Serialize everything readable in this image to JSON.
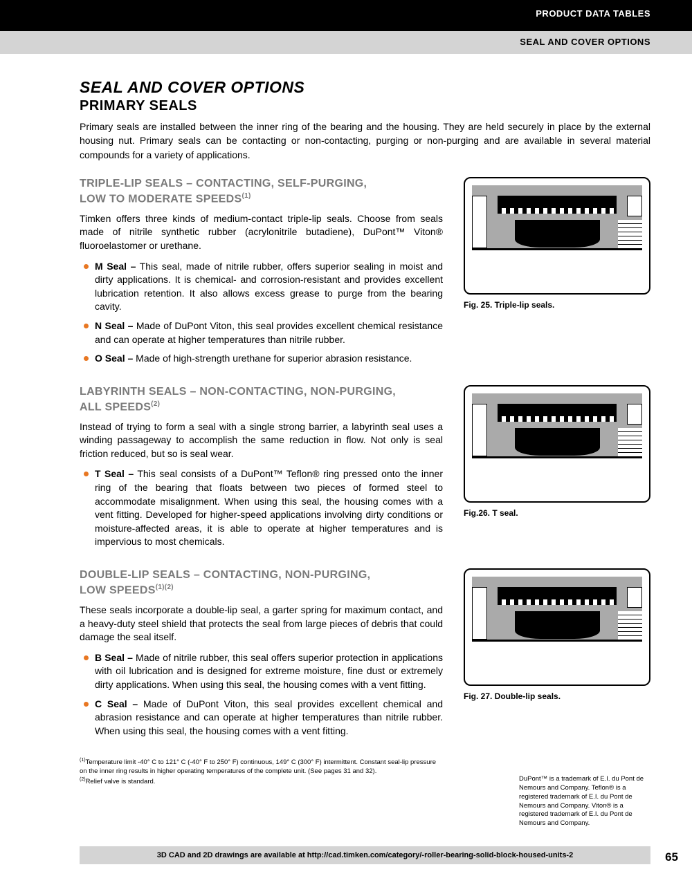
{
  "header": {
    "black": "PRODUCT DATA TABLES",
    "grey": "SEAL AND COVER OPTIONS"
  },
  "title": "SEAL AND COVER OPTIONS",
  "subtitle": "PRIMARY SEALS",
  "intro": "Primary seals are installed between the inner ring of the bearing and the housing. They are held securely in place by the external housing nut. Primary seals can be contacting or non-contacting, purging or non-purging and are available in several material compounds for a variety of applications.",
  "sections": [
    {
      "heading_line1": "TRIPLE-LIP SEALS – CONTACTING, SELF-PURGING,",
      "heading_line2": "LOW TO MODERATE SPEEDS",
      "heading_sup": "(1)",
      "intro": "Timken offers three kinds of medium-contact triple-lip seals. Choose from seals made of nitrile synthetic rubber (acrylonitrile butadiene), DuPont™ Viton® fluoroelastomer or urethane.",
      "bullets": [
        {
          "label": "M Seal –",
          "text": " This seal, made of nitrile rubber, offers superior sealing in moist and dirty applications. It is chemical- and corrosion-resistant and provides excellent lubrication retention. It also allows excess grease to purge from the bearing cavity."
        },
        {
          "label": "N Seal –",
          "text": " Made of DuPont Viton, this seal provides excellent chemical resistance and can operate at higher temperatures than nitrile rubber."
        },
        {
          "label": "O Seal –",
          "text": " Made of high-strength urethane for superior abrasion resistance."
        }
      ],
      "figure_caption": "Fig. 25. Triple-lip seals."
    },
    {
      "heading_line1": "LABYRINTH SEALS – NON-CONTACTING, NON-PURGING,",
      "heading_line2": "ALL SPEEDS",
      "heading_sup": "(2)",
      "intro": "Instead of trying to form a seal with a single strong barrier, a labyrinth seal uses a winding passageway to accomplish the same reduction in flow. Not only is seal friction reduced, but so is seal wear.",
      "bullets": [
        {
          "label": "T Seal –",
          "text": " This seal consists of a DuPont™ Teflon® ring pressed onto the inner ring of the bearing that floats between two pieces of formed steel to accommodate misalignment. When using this seal, the housing comes with a vent fitting. Developed for higher-speed applications involving dirty conditions or moisture-affected areas, it is able to operate at higher temperatures and is impervious to most chemicals."
        }
      ],
      "figure_caption": "Fig.26. T seal."
    },
    {
      "heading_line1": "DOUBLE-LIP SEALS – CONTACTING, NON-PURGING,",
      "heading_line2": "LOW SPEEDS",
      "heading_sup": "(1)(2)",
      "intro": "These seals incorporate a double-lip seal, a garter spring for maximum contact, and a heavy-duty steel shield that protects the seal from large pieces of debris that could damage the seal itself.",
      "bullets": [
        {
          "label": "B Seal –",
          "text": " Made of nitrile rubber, this seal offers superior protection in applications with oil lubrication and is designed for extreme moisture, fine dust or extremely dirty applications. When using this seal, the housing comes with a vent fitting."
        },
        {
          "label": "C Seal –",
          "text": " Made of DuPont Viton, this seal provides excellent chemical and abrasion resistance and can operate at higher temperatures than nitrile rubber. When using this seal, the housing comes with a vent fitting."
        }
      ],
      "figure_caption": "Fig. 27. Double-lip seals."
    }
  ],
  "footnotes": {
    "fn1_sup": "(1)",
    "fn1": "Temperature limit -40° C to 121° C (-40° F to 250° F) continuous, 149° C (300° F) intermittent. Constant seal-lip pressure on the inner ring results in higher operating temperatures of the complete unit. (See pages 31 and 32).",
    "fn2_sup": "(2)",
    "fn2": "Relief valve is standard."
  },
  "trademark": "DuPont™ is a trademark of E.I. du Pont de Nemours and Company. Teflon® is a registered trademark of E.I. du Pont de Nemours and Company. Viton® is a registered trademark of E.I. du Pont de Nemours and Company.",
  "footer": "3D CAD and 2D drawings are available at http://cad.timken.com/category/-roller-bearing-solid-block-housed-units-2",
  "page_number": "65",
  "colors": {
    "bullet": "#e87722",
    "heading_grey": "#7a7a7a",
    "bar_grey": "#d4d4d4"
  }
}
